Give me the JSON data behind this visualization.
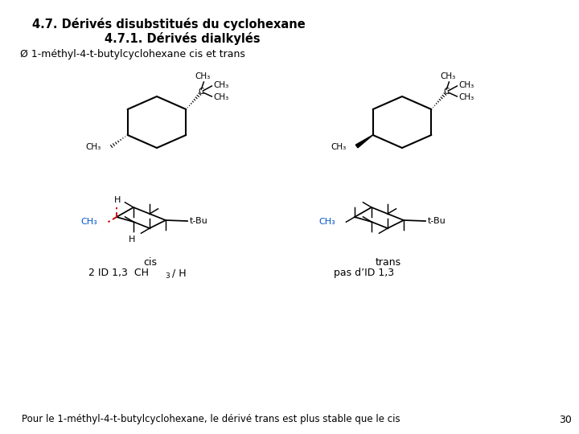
{
  "title1": "4.7. Dérivés disubstitués du cyclohexane",
  "title2": "4.7.1. Dérivés dialkylés",
  "bullet": "Ø 1-méthyl-4-t-butylcyclohexane cis et trans",
  "label_cis": "cis",
  "label_trans": "trans",
  "label_id_main": "2 ID 1,3  CH",
  "label_id_sub": "3",
  "label_id_end": " / H",
  "label_noid": "pas d’ID 1,3",
  "footer": "Pour le 1-méthyl-4-t-butylcyclohexane, le dérivé trans est plus stable que le cis",
  "page": "30",
  "bg_color": "#ffffff",
  "text_color": "#000000",
  "red_color": "#cc0000",
  "blue_color": "#0055cc"
}
